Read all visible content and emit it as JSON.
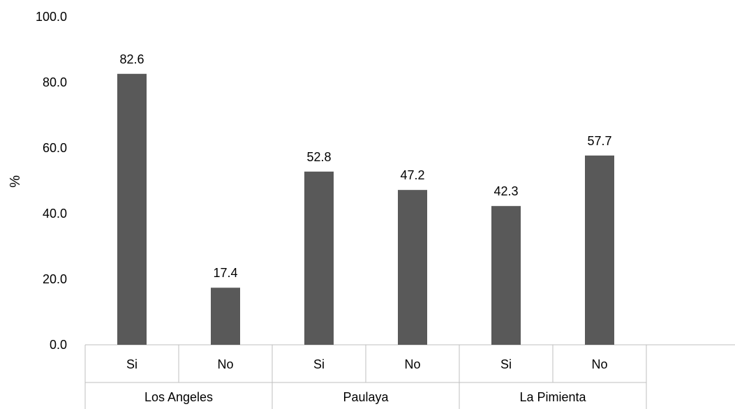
{
  "chart_data": {
    "type": "bar",
    "ylabel": "%",
    "ylim": [
      0,
      100
    ],
    "yticks": [
      "0.0",
      "20.0",
      "40.0",
      "60.0",
      "80.0",
      "100.0"
    ],
    "grid": false,
    "bar_color": "#595959",
    "groups": [
      {
        "name": "Los Angeles",
        "categories": [
          "Si",
          "No"
        ],
        "values": [
          82.6,
          17.4
        ],
        "labels": [
          "82.6",
          "17.4"
        ]
      },
      {
        "name": "Paulaya",
        "categories": [
          "Si",
          "No"
        ],
        "values": [
          52.8,
          47.2
        ],
        "labels": [
          "52.8",
          "47.2"
        ]
      },
      {
        "name": "La Pimienta",
        "categories": [
          "Si",
          "No"
        ],
        "values": [
          42.3,
          57.7
        ],
        "labels": [
          "42.3",
          "57.7"
        ]
      }
    ]
  }
}
